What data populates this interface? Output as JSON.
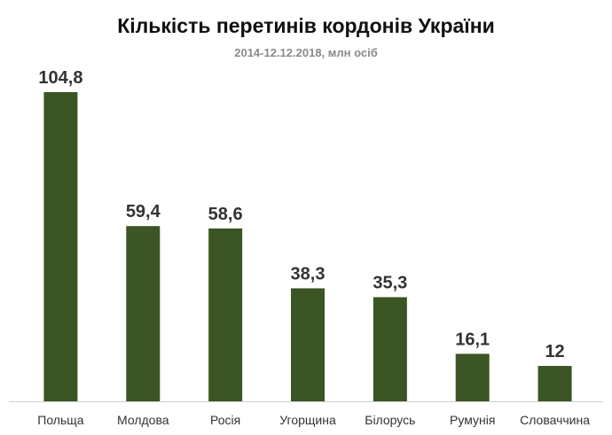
{
  "colors": {
    "bar": "#3b5524",
    "axis": "#cfcfcf",
    "value_label": "#333333",
    "category_label": "#333333"
  },
  "chart_data": {
    "type": "bar",
    "title": "Кількість перетинів кордонів України",
    "subtitle": "2014-12.12.2018, млн осіб",
    "xlabel": "",
    "ylabel": "",
    "grid": false,
    "legend": "none",
    "ylim": [
      0,
      104.8
    ],
    "categories": [
      "Польща",
      "Молдова",
      "Росія",
      "Угорщина",
      "Білорусь",
      "Румунія",
      "Словаччина"
    ],
    "values": [
      104.8,
      59.4,
      58.6,
      38.3,
      35.3,
      16.1,
      12
    ],
    "value_labels": [
      "104,8",
      "59,4",
      "58,6",
      "38,3",
      "35,3",
      "16,1",
      "12"
    ]
  }
}
